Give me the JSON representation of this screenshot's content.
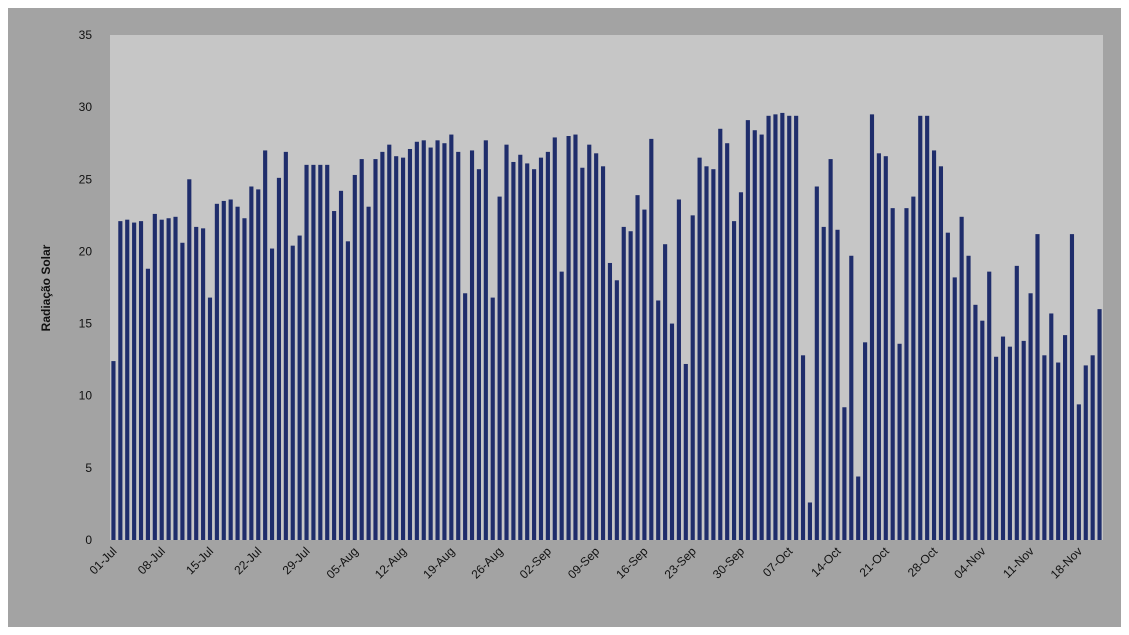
{
  "chart_data": {
    "type": "bar",
    "y_label": "Radiação Solar",
    "categories": [
      "01-Jul",
      null,
      null,
      null,
      null,
      null,
      null,
      "08-Jul",
      null,
      null,
      null,
      null,
      null,
      null,
      "15-Jul",
      null,
      null,
      null,
      null,
      null,
      null,
      "22-Jul",
      null,
      null,
      null,
      null,
      null,
      null,
      "29-Jul",
      null,
      null,
      null,
      null,
      null,
      null,
      "05-Aug",
      null,
      null,
      null,
      null,
      null,
      null,
      "12-Aug",
      null,
      null,
      null,
      null,
      null,
      null,
      "19-Aug",
      null,
      null,
      null,
      null,
      null,
      null,
      "26-Aug",
      null,
      null,
      null,
      null,
      null,
      null,
      "02-Sep",
      null,
      null,
      null,
      null,
      null,
      null,
      "09-Sep",
      null,
      null,
      null,
      null,
      null,
      null,
      "16-Sep",
      null,
      null,
      null,
      null,
      null,
      null,
      "23-Sep",
      null,
      null,
      null,
      null,
      null,
      null,
      "30-Sep",
      null,
      null,
      null,
      null,
      null,
      null,
      "07-Oct",
      null,
      null,
      null,
      null,
      null,
      null,
      "14-Oct",
      null,
      null,
      null,
      null,
      null,
      null,
      "21-Oct",
      null,
      null,
      null,
      null,
      null,
      null,
      "28-Oct",
      null,
      null,
      null,
      null,
      null,
      null,
      "04-Nov",
      null,
      null,
      null,
      null,
      null,
      null,
      "11-Nov",
      null,
      null,
      null,
      null,
      null,
      null,
      "18-Nov",
      null,
      null,
      null
    ],
    "values": [
      12.4,
      22.1,
      22.2,
      22.0,
      22.1,
      18.8,
      22.6,
      22.2,
      22.3,
      22.4,
      20.6,
      25.0,
      21.7,
      21.6,
      16.8,
      23.3,
      23.5,
      23.6,
      23.1,
      22.3,
      24.5,
      24.3,
      27.0,
      20.2,
      25.1,
      26.9,
      20.4,
      21.1,
      26.0,
      26.0,
      26.0,
      26.0,
      22.8,
      24.2,
      20.7,
      25.3,
      26.4,
      23.1,
      26.4,
      26.9,
      27.4,
      26.6,
      26.5,
      27.1,
      27.6,
      27.7,
      27.2,
      27.7,
      27.5,
      28.1,
      26.9,
      17.1,
      27.0,
      25.7,
      27.7,
      16.8,
      23.8,
      27.4,
      26.2,
      26.7,
      26.1,
      25.7,
      26.5,
      26.9,
      27.9,
      18.6,
      28.0,
      28.1,
      25.8,
      27.4,
      26.8,
      25.9,
      19.2,
      18.0,
      21.7,
      21.4,
      23.9,
      22.9,
      27.8,
      16.6,
      20.5,
      15.0,
      23.6,
      12.2,
      22.5,
      26.5,
      25.9,
      25.7,
      28.5,
      27.5,
      22.1,
      24.1,
      29.1,
      28.4,
      28.1,
      29.4,
      29.5,
      29.6,
      29.4,
      29.4,
      12.8,
      2.6,
      24.5,
      21.7,
      26.4,
      21.5,
      9.2,
      19.7,
      4.4,
      13.7,
      29.5,
      26.8,
      26.6,
      23.0,
      13.6,
      23.0,
      23.8,
      29.4,
      29.4,
      27.0,
      25.9,
      21.3,
      18.2,
      22.4,
      19.7,
      16.3,
      15.2,
      18.6,
      12.7,
      14.1,
      13.4,
      19.0,
      13.8,
      17.1,
      21.2,
      12.8,
      15.7,
      12.3,
      14.2,
      21.2,
      9.4,
      12.1,
      12.8,
      16.0
    ],
    "color": "#1f2d6b",
    "ylim": [
      0,
      35
    ],
    "yticks": [
      0,
      5,
      10,
      15,
      20,
      25,
      30,
      35
    ],
    "grid": false
  }
}
